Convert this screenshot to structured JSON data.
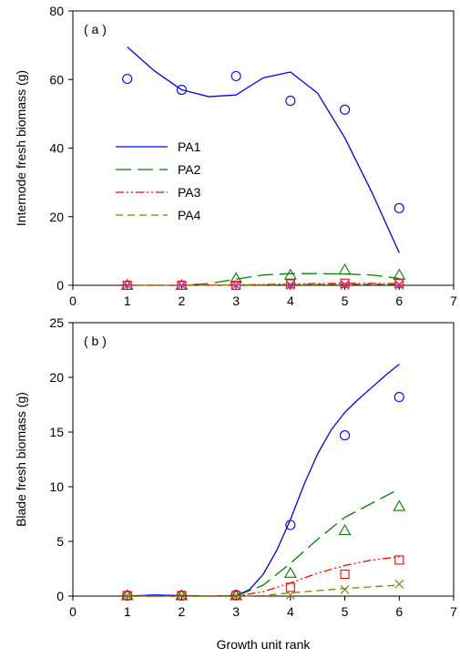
{
  "chart_data": [
    {
      "type": "line",
      "panel_label": "( a )",
      "ylabel": "Internode fresh biomass (g)",
      "xlabel": "",
      "xlim": [
        0,
        7
      ],
      "ylim": [
        0,
        80
      ],
      "xticks": [
        0,
        1,
        2,
        3,
        4,
        5,
        6,
        7
      ],
      "yticks": [
        0,
        20,
        40,
        60,
        80
      ],
      "legend_position": "left-middle",
      "series": [
        {
          "name": "PA1",
          "color": "#0000ff",
          "line_style": "solid",
          "marker": "circle",
          "points_x": [
            1,
            2,
            3,
            4,
            5,
            6
          ],
          "points_y": [
            60.2,
            57.0,
            61.0,
            53.8,
            51.2,
            22.5
          ],
          "curve_x": [
            1,
            1.5,
            2,
            2.5,
            3,
            3.5,
            4,
            4.5,
            5,
            5.5,
            6
          ],
          "curve_y": [
            69.5,
            62.5,
            57.0,
            55.0,
            55.5,
            60.5,
            62.2,
            56.0,
            43.0,
            27.0,
            9.5
          ]
        },
        {
          "name": "PA2",
          "color": "#008000",
          "line_style": "long-dash",
          "marker": "triangle",
          "points_x": [
            1,
            2,
            3,
            4,
            5,
            6
          ],
          "points_y": [
            0,
            0,
            2.0,
            3.0,
            4.5,
            3.0
          ],
          "curve_x": [
            1,
            2,
            2.5,
            3,
            3.5,
            4,
            4.5,
            5,
            5.5,
            6
          ],
          "curve_y": [
            0,
            0,
            0.5,
            1.8,
            3.0,
            3.4,
            3.4,
            3.3,
            3.0,
            2.0
          ]
        },
        {
          "name": "PA3",
          "color": "#ff0000",
          "line_style": "dash-dot-dot",
          "marker": "square",
          "points_x": [
            1,
            2,
            3,
            4,
            5,
            6
          ],
          "points_y": [
            0,
            0,
            0,
            0.4,
            0.6,
            0.5
          ],
          "curve_x": [
            1,
            2,
            3,
            4,
            5,
            6
          ],
          "curve_y": [
            0,
            0,
            0.1,
            0.4,
            0.6,
            0.5
          ]
        },
        {
          "name": "PA4",
          "color": "#808000",
          "line_style": "dash",
          "marker": "x",
          "points_x": [
            1,
            2,
            3,
            4,
            5,
            6
          ],
          "points_y": [
            0,
            0,
            0,
            0.2,
            0.3,
            0.3
          ],
          "curve_x": [
            1,
            2,
            3,
            4,
            5,
            6
          ],
          "curve_y": [
            0,
            0,
            0.05,
            0.2,
            0.3,
            0.3
          ]
        }
      ],
      "extra_markers": [
        {
          "color": "#ff00ff",
          "marker": "x",
          "points_x": [
            1,
            2,
            3,
            4,
            5,
            6
          ],
          "points_y": [
            0,
            0,
            0,
            0,
            0,
            0
          ]
        }
      ]
    },
    {
      "type": "line",
      "panel_label": "( b )",
      "ylabel": "Blade fresh biomass (g)",
      "xlabel": "Growth unit rank",
      "xlim": [
        0,
        7
      ],
      "ylim": [
        0,
        25
      ],
      "xticks": [
        0,
        1,
        2,
        3,
        4,
        5,
        6,
        7
      ],
      "yticks": [
        0,
        5,
        10,
        15,
        20,
        25
      ],
      "series": [
        {
          "name": "PA1",
          "color": "#0000ff",
          "line_style": "solid",
          "marker": "circle",
          "points_x": [
            1,
            2,
            3,
            4,
            5,
            6
          ],
          "points_y": [
            0.05,
            0.05,
            0.1,
            6.5,
            14.7,
            18.2
          ],
          "curve_x": [
            1,
            1.5,
            2,
            2.5,
            3,
            3.25,
            3.5,
            3.75,
            4,
            4.25,
            4.5,
            4.75,
            5,
            5.25,
            5.5,
            5.75,
            6
          ],
          "curve_y": [
            0,
            0.1,
            0.05,
            0,
            0.05,
            0.6,
            2.0,
            4.2,
            7.0,
            10.2,
            13.0,
            15.2,
            16.8,
            18.0,
            19.1,
            20.2,
            21.2
          ]
        },
        {
          "name": "PA2",
          "color": "#008000",
          "line_style": "long-dash",
          "marker": "triangle",
          "points_x": [
            1,
            2,
            3,
            4,
            5,
            6
          ],
          "points_y": [
            0.05,
            0.05,
            0.05,
            2.1,
            6.0,
            8.2
          ],
          "curve_x": [
            1,
            2,
            3,
            3.5,
            4,
            4.5,
            5,
            5.5,
            6
          ],
          "curve_y": [
            0,
            0,
            0,
            1.0,
            3.0,
            5.2,
            7.2,
            8.5,
            9.8
          ]
        },
        {
          "name": "PA3",
          "color": "#ff0000",
          "line_style": "dash-dot-dot",
          "marker": "square",
          "points_x": [
            1,
            2,
            3,
            4,
            5,
            6
          ],
          "points_y": [
            0.05,
            0.05,
            0.05,
            0.8,
            2.0,
            3.3
          ],
          "curve_x": [
            1,
            2,
            3,
            3.5,
            4,
            4.5,
            5,
            5.5,
            6
          ],
          "curve_y": [
            0,
            0,
            0,
            0.4,
            1.2,
            2.1,
            2.8,
            3.3,
            3.6
          ]
        },
        {
          "name": "PA4",
          "color": "#808000",
          "line_style": "dash",
          "marker": "x",
          "points_x": [
            1,
            2,
            3,
            4,
            5,
            6
          ],
          "points_y": [
            0.05,
            0.05,
            0.05,
            0.1,
            0.6,
            1.1
          ],
          "curve_x": [
            1,
            2,
            3,
            3.5,
            4,
            4.5,
            5,
            5.5,
            6
          ],
          "curve_y": [
            0,
            0,
            0,
            0.05,
            0.3,
            0.5,
            0.7,
            0.85,
            1.0
          ]
        }
      ]
    }
  ]
}
